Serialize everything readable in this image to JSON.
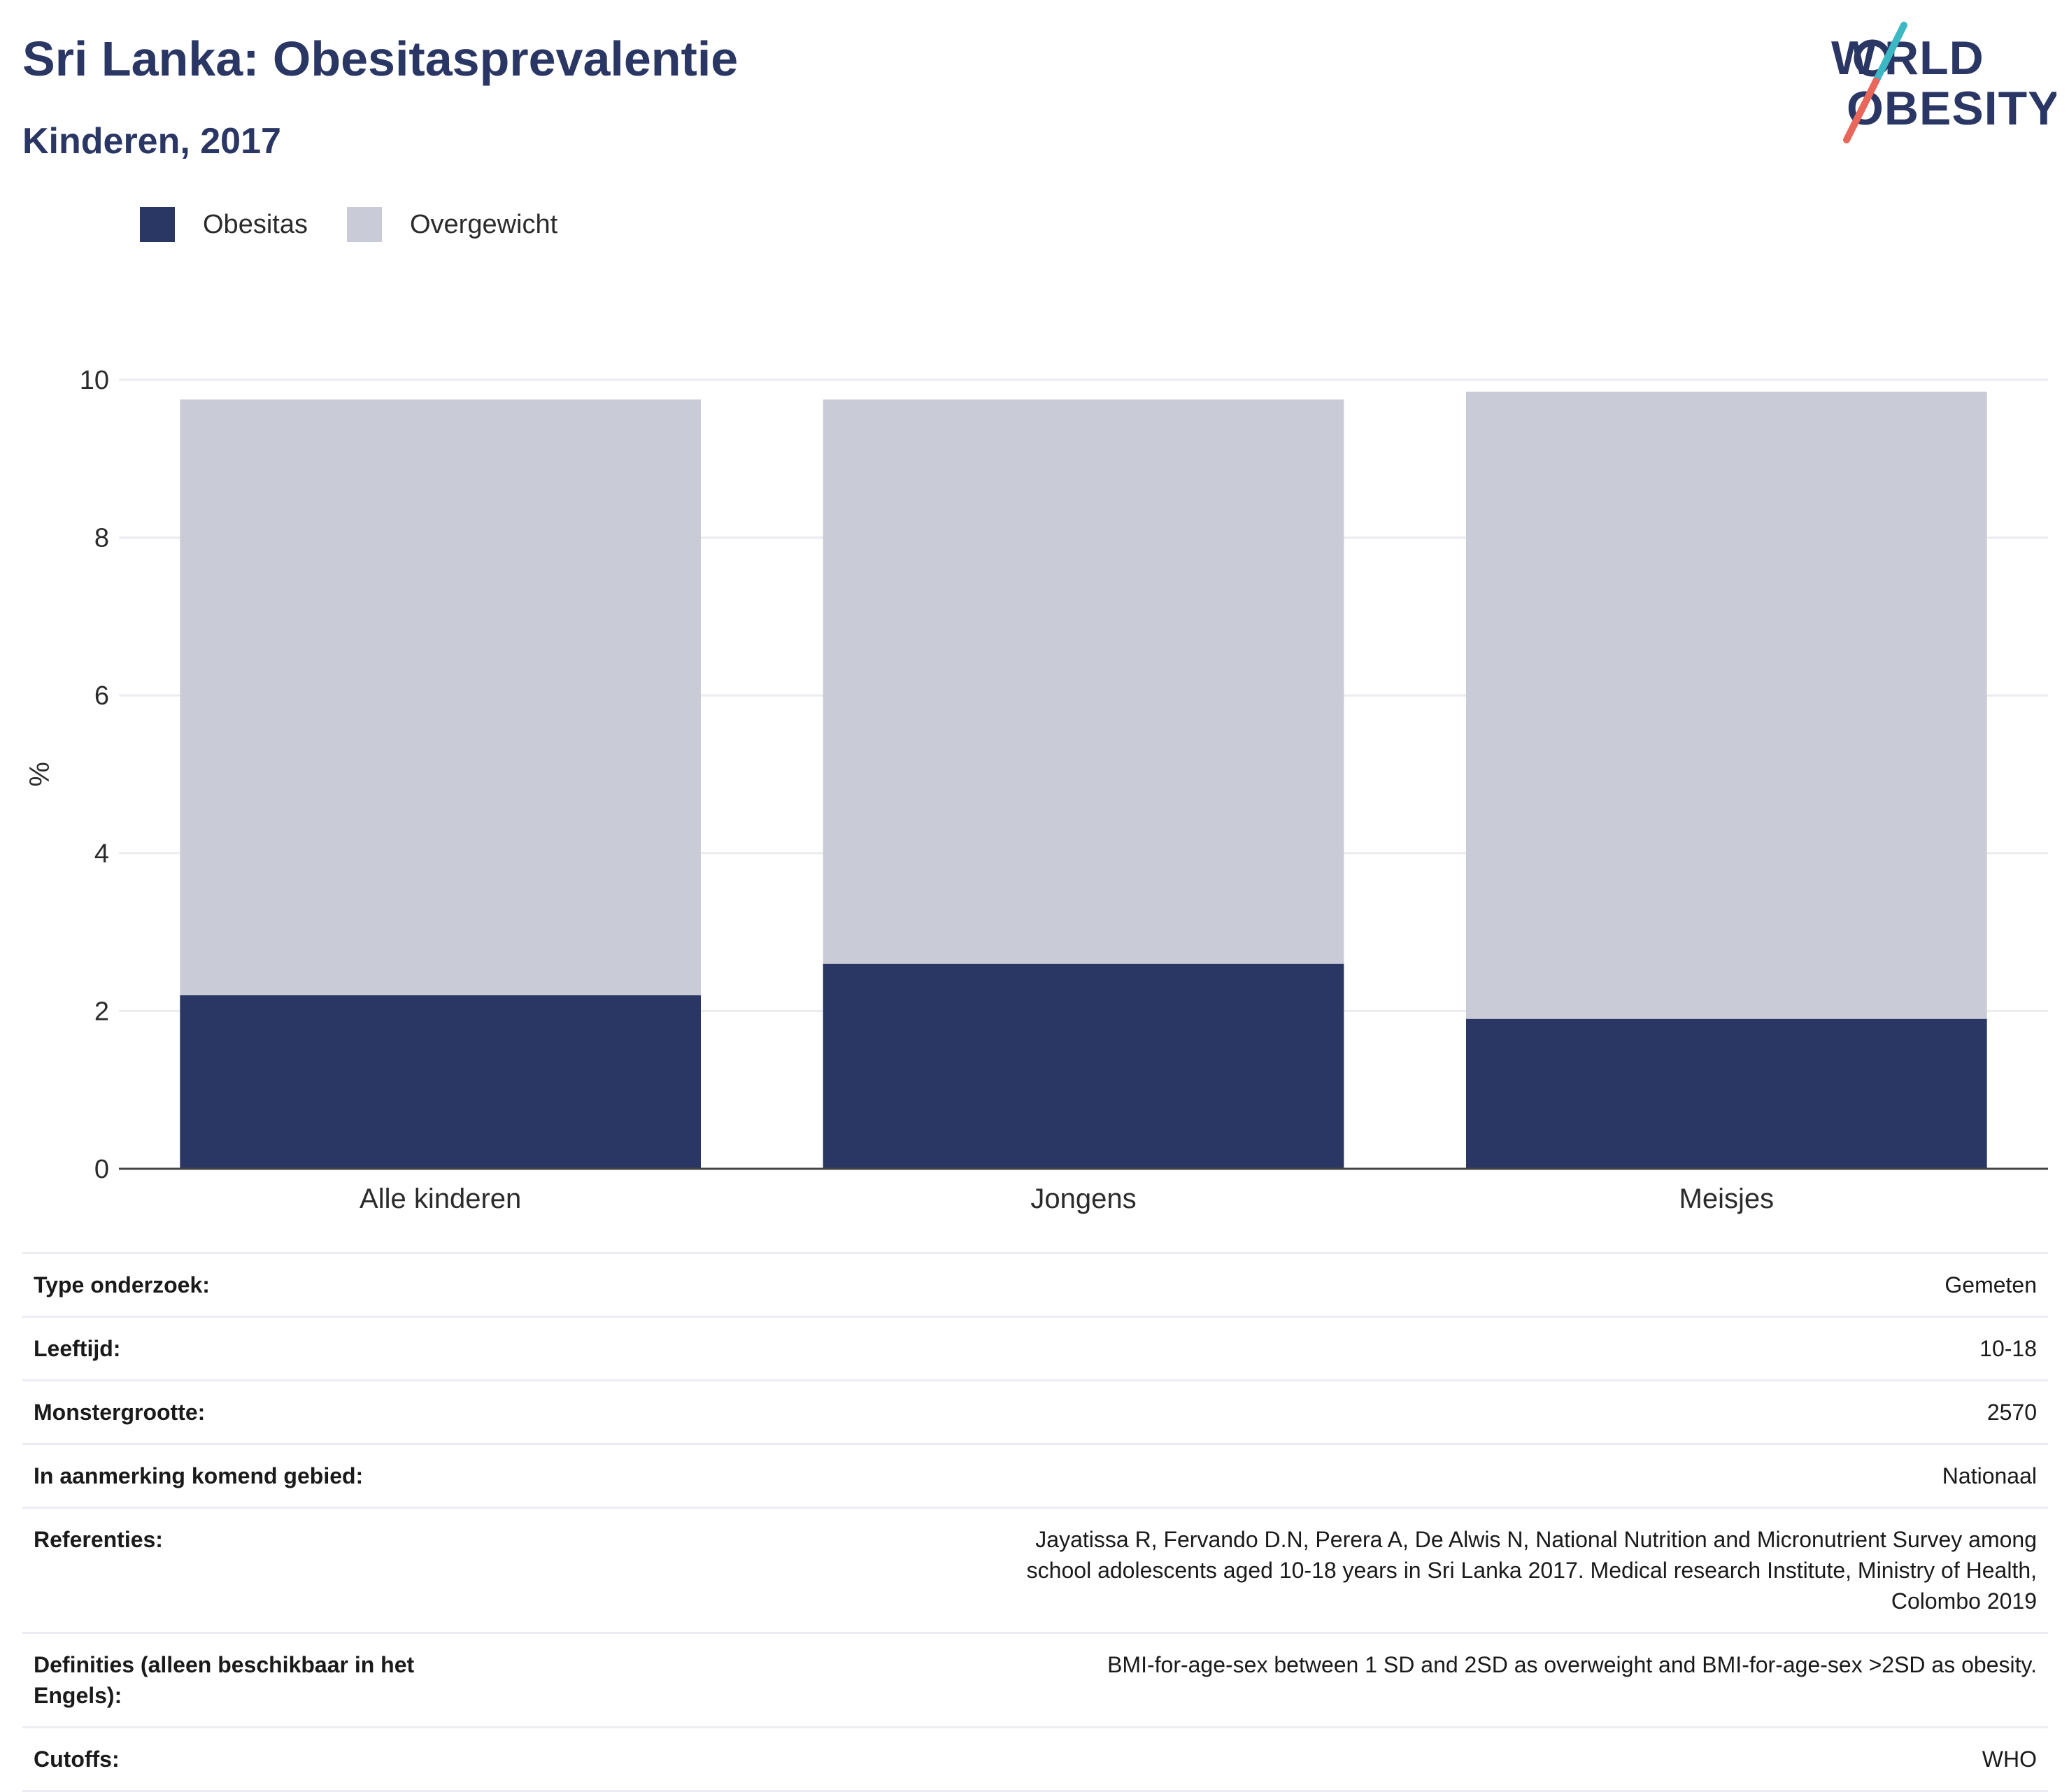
{
  "header": {
    "title": "Sri Lanka: Obesitasprevalentie",
    "subtitle": "Kinderen, 2017"
  },
  "logo": {
    "line1": "WORLD",
    "line2": "OBESITY",
    "colors": {
      "text": "#2a3663",
      "slash_top": "#3bb8c4",
      "slash_bottom": "#e8665a"
    }
  },
  "legend": [
    {
      "label": "Obesitas",
      "color": "#2a3663"
    },
    {
      "label": "Overgewicht",
      "color": "#c9cbd7"
    }
  ],
  "chart_data": {
    "type": "bar",
    "stacked": true,
    "categories": [
      "Alle kinderen",
      "Jongens",
      "Meisjes"
    ],
    "series": [
      {
        "name": "Obesitas",
        "values": [
          2.2,
          2.6,
          1.9
        ],
        "color": "#2a3663"
      },
      {
        "name": "Overgewicht",
        "values": [
          7.55,
          7.15,
          7.95
        ],
        "color": "#c9cbd7"
      }
    ],
    "ylabel": "%",
    "xlabel": "",
    "ylim": [
      0,
      10
    ],
    "yticks": [
      0,
      2,
      4,
      6,
      8,
      10
    ],
    "grid": true
  },
  "info": [
    {
      "label": "Type onderzoek:",
      "value": "Gemeten"
    },
    {
      "label": "Leeftijd:",
      "value": "10-18"
    },
    {
      "label": "Monstergrootte:",
      "value": "2570"
    },
    {
      "label": "In aanmerking komend gebied:",
      "value": "Nationaal"
    },
    {
      "label": "Referenties:",
      "value": "Jayatissa R, Fervando D.N, Perera A, De Alwis N, National Nutrition and Micronutrient Survey among school adolescents aged 10-18 years in Sri Lanka 2017. Medical research Institute, Ministry of Health, Colombo 2019"
    },
    {
      "label": "Definities (alleen beschikbaar in het Engels):",
      "value": "BMI-for-age-sex between 1 SD and 2SD as overweight and BMI-for-age-sex >2SD as obesity."
    },
    {
      "label": "Cutoffs:",
      "value": "WHO"
    }
  ]
}
